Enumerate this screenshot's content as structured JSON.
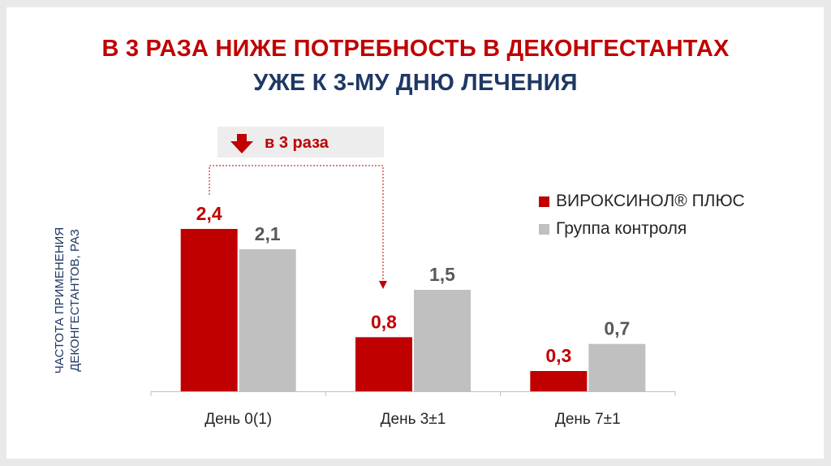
{
  "header": {
    "title_line1": "В 3 РАЗА НИЖЕ ПОТРЕБНОСТЬ В ДЕКОНГЕСТАНТАХ",
    "title_line2": "УЖЕ К 3-МУ ДНЮ ЛЕЧЕНИЯ"
  },
  "annotation": {
    "text": "в 3 раза",
    "icon": "arrow-down-icon"
  },
  "chart_data": {
    "type": "bar",
    "categories": [
      "День 0(1)",
      "День 3±1",
      "День 7±1"
    ],
    "series": [
      {
        "name": "ВИРОКСИНОЛ® ПЛЮС",
        "values": [
          2.4,
          0.8,
          0.3
        ],
        "labels": [
          "2,4",
          "0,8",
          "0,3"
        ],
        "color": "#c00000"
      },
      {
        "name": "Группа контроля",
        "values": [
          2.1,
          1.5,
          0.7
        ],
        "labels": [
          "2,1",
          "1,5",
          "0,7"
        ],
        "color": "#c0c0c0"
      }
    ],
    "ylabel_line1": "ЧАСТОТА ПРИМЕНЕНИЯ",
    "ylabel_line2": "ДЕКОНГЕСТАНТОВ, РАЗ",
    "ylim": [
      0,
      2.4
    ],
    "grid": false,
    "legend_position": "right"
  },
  "colors": {
    "title_red": "#c00000",
    "title_blue": "#1f3864",
    "series_red": "#c00000",
    "series_gray": "#c0c0c0",
    "annotation_bg": "#ededed"
  }
}
